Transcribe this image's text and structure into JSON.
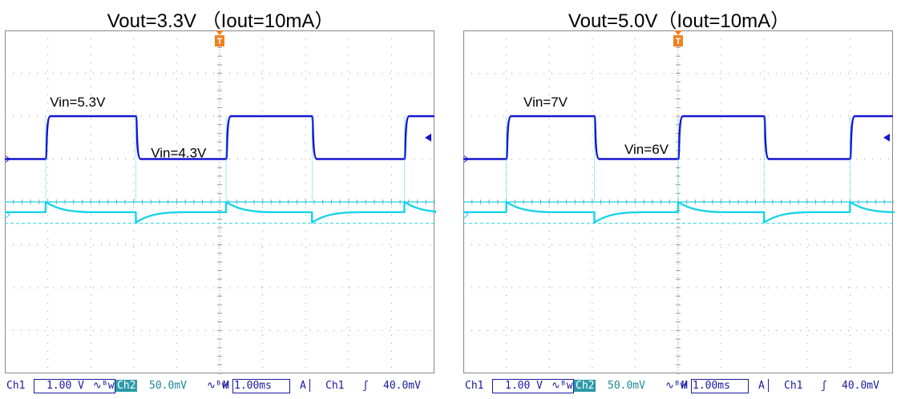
{
  "chart_data": [
    {
      "type": "line",
      "title": "Vout=3.3V （Iout=10mA）",
      "time_unit": "ms",
      "time_per_div": 1.0,
      "x_range": [
        -5,
        5
      ],
      "annotations": [
        {
          "text": "Vin=5.3V",
          "t": -3.95,
          "v": 2.22
        },
        {
          "text": "Vin=4.3V",
          "t": -1.6,
          "v": 1.04
        }
      ],
      "series": [
        {
          "color": "#1515d0",
          "y_range": [
            -4,
            4
          ],
          "segments": [
            {
              "t0": -5.0,
              "t1": -4.05,
              "v": 1.0
            },
            {
              "t0": -4.05,
              "t1": -1.95,
              "v": 2.0
            },
            {
              "t0": -1.95,
              "t1": 0.15,
              "v": 1.0
            },
            {
              "t0": 0.15,
              "t1": 2.15,
              "v": 2.0
            },
            {
              "t0": 2.15,
              "t1": 4.3,
              "v": 1.0
            },
            {
              "t0": 4.3,
              "t1": 5.0,
              "v": 2.0
            }
          ]
        },
        {
          "color": "#18d4e8",
          "y_range": [
            -200,
            200
          ],
          "baseline": -12,
          "reference": 0,
          "dashed_reference": -25,
          "edges": [
            -4.05,
            -1.95,
            0.15,
            2.15,
            4.3
          ],
          "overshoot_up": 12,
          "overshoot_down": -12
        }
      ]
    },
    {
      "type": "line",
      "title": "Vout=5.0V（Iout=10mA）",
      "time_unit": "ms",
      "time_per_div": 1.0,
      "x_range": [
        -5,
        5
      ],
      "annotations": [
        {
          "text": "Vin=7V",
          "t": -3.6,
          "v": 2.22
        },
        {
          "text": "Vin=6V",
          "t": -1.25,
          "v": 1.12
        }
      ],
      "series": [
        {
          "color": "#1515d0",
          "y_range": [
            -4,
            4
          ],
          "segments": [
            {
              "t0": -5.0,
              "t1": -4.0,
              "v": 1.0
            },
            {
              "t0": -4.0,
              "t1": -1.95,
              "v": 2.0
            },
            {
              "t0": -1.95,
              "t1": 0.0,
              "v": 1.0
            },
            {
              "t0": 0.0,
              "t1": 2.0,
              "v": 2.0
            },
            {
              "t0": 2.0,
              "t1": 4.0,
              "v": 1.0
            },
            {
              "t0": 4.0,
              "t1": 5.0,
              "v": 2.0
            }
          ]
        },
        {
          "color": "#18d4e8",
          "y_range": [
            -200,
            200
          ],
          "baseline": -12,
          "reference": 0,
          "dashed_reference": -25,
          "edges": [
            -4.0,
            -1.95,
            0.0,
            2.0,
            4.0
          ],
          "overshoot_up": 12,
          "overshoot_down": -12
        }
      ]
    }
  ],
  "status_bar": {
    "ch1_label": "Ch1",
    "ch1_scale": "1.00 V",
    "ch1_coupling": "∿ᴮw",
    "ch2_label": "Ch2",
    "ch2_scale": "50.0mV",
    "ch2_coupling": "∿ᴮw",
    "timebase_prefix": "M",
    "timebase": "1.00ms",
    "trigger_mode": "A",
    "trigger_channel": "Ch1",
    "trigger_slope": "ʃ",
    "trigger_level": "40.0mV"
  },
  "colors": {
    "ch1": "#1515d0",
    "ch2": "#18d4e8",
    "trigger_marker": "#f08020",
    "grid": "#888888"
  },
  "icons": {
    "trigger_marker": "trigger-position-icon",
    "level_marker": "trigger-level-arrow-icon"
  },
  "trigger_marker_label": "T"
}
